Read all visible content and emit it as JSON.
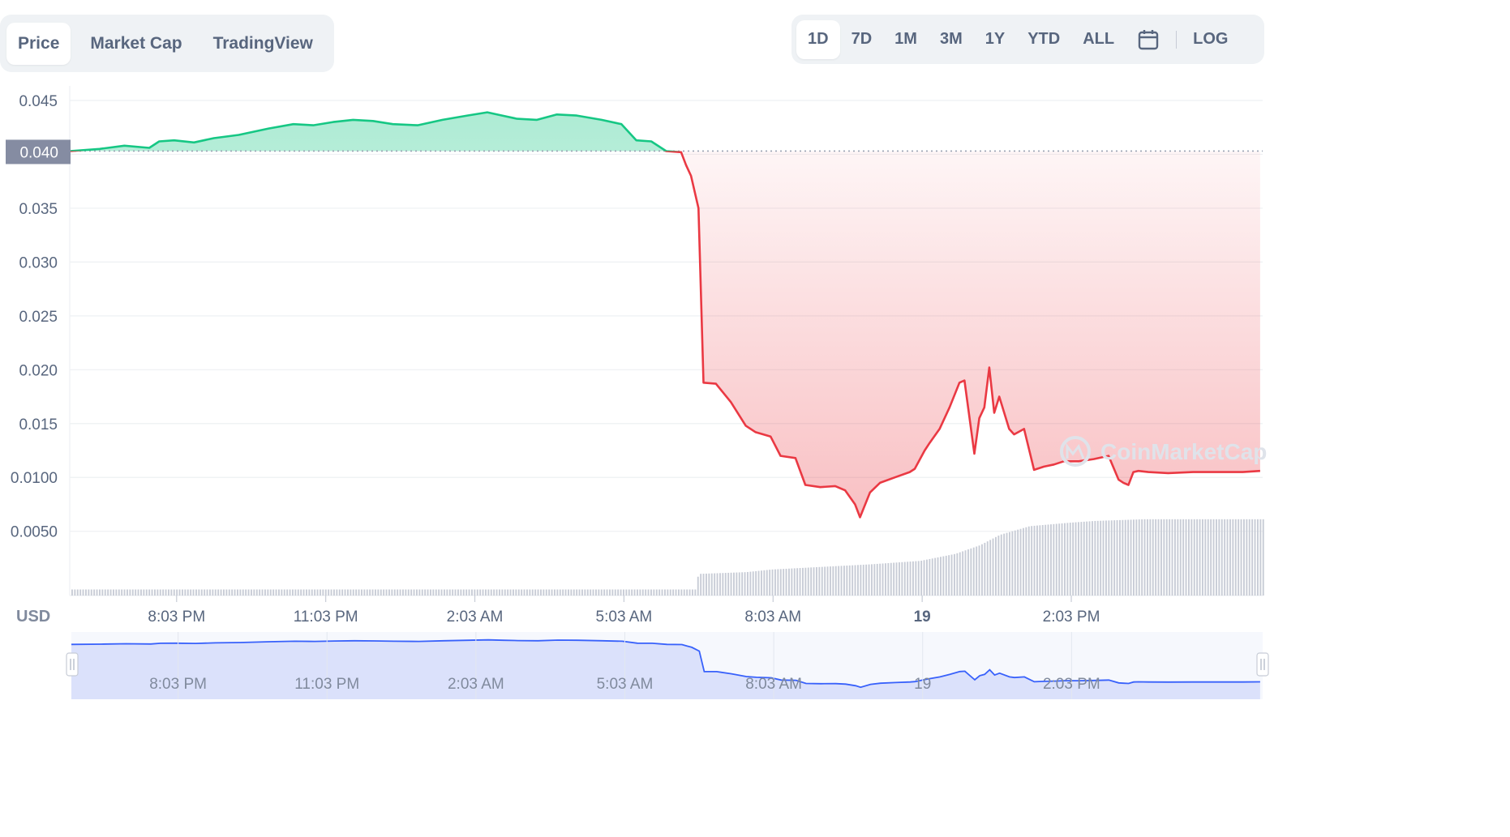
{
  "tabs": {
    "left": [
      {
        "label": "Price",
        "active": true
      },
      {
        "label": "Market Cap",
        "active": false
      },
      {
        "label": "TradingView",
        "active": false
      }
    ],
    "ranges": [
      {
        "label": "1D",
        "active": true
      },
      {
        "label": "7D",
        "active": false
      },
      {
        "label": "1M",
        "active": false
      },
      {
        "label": "3M",
        "active": false
      },
      {
        "label": "1Y",
        "active": false
      },
      {
        "label": "YTD",
        "active": false
      },
      {
        "label": "ALL",
        "active": false
      }
    ],
    "calendar_icon": "calendar-icon",
    "log_label": "LOG"
  },
  "watermark": "CoinMarketCap",
  "colors": {
    "up": "#16c784",
    "down": "#ea3943",
    "nav_line": "#3861fb",
    "nav_fill": "#dbe1fb",
    "volume": "#c8ccd6",
    "current_price_bg": "#858ca2"
  },
  "chart_data": {
    "type": "line",
    "unit_label": "USD",
    "current_price_label": "0.040",
    "reference_price": 0.0403,
    "ylim": [
      0,
      0.046
    ],
    "y_ticks": [
      "0.045",
      "0.040",
      "0.035",
      "0.030",
      "0.025",
      "0.020",
      "0.015",
      "0.0100",
      "0.0050"
    ],
    "y_tick_values": [
      0.045,
      0.04,
      0.035,
      0.03,
      0.025,
      0.02,
      0.015,
      0.01,
      0.005
    ],
    "x_ticks": [
      {
        "label": "8:03 PM",
        "bold": false,
        "h": 20.05
      },
      {
        "label": "11:03 PM",
        "bold": false,
        "h": 23.05
      },
      {
        "label": "2:03 AM",
        "bold": false,
        "h": 26.05
      },
      {
        "label": "5:03 AM",
        "bold": false,
        "h": 29.05
      },
      {
        "label": "8:03 AM",
        "bold": false,
        "h": 32.05
      },
      {
        "label": "19",
        "bold": true,
        "h": 35.05
      },
      {
        "label": "2:03 PM",
        "bold": false,
        "h": 38.05
      }
    ],
    "xlim_hours": [
      17.9,
      41.9
    ],
    "series": [
      {
        "x_hours": [
          17.9,
          18.5,
          19.0,
          19.5,
          19.7,
          20.0,
          20.4,
          20.8,
          21.3,
          21.9,
          22.4,
          22.8,
          23.2,
          23.6,
          24.0,
          24.4,
          24.9,
          25.4,
          25.9,
          26.3,
          26.6,
          26.9,
          27.3,
          27.7,
          28.1,
          28.6,
          29.0,
          29.3,
          29.6,
          29.9,
          30.2,
          30.3,
          30.4,
          30.55,
          30.65,
          30.9,
          31.2,
          31.5,
          31.7,
          32.0,
          32.2,
          32.5,
          32.7,
          33.0,
          33.3,
          33.5,
          33.7,
          33.8,
          34.0,
          34.2,
          34.5,
          34.8,
          34.9,
          35.1,
          35.2,
          35.4,
          35.6,
          35.8,
          35.9,
          36.1,
          36.2,
          36.3,
          36.4,
          36.5,
          36.6,
          36.8,
          36.9,
          37.1,
          37.3,
          37.5,
          37.7,
          37.9,
          38.2,
          38.5,
          38.8,
          39.0,
          39.1,
          39.2,
          39.3,
          39.4,
          39.6,
          40.0,
          40.5,
          41.0,
          41.5,
          41.85
        ],
        "y": [
          0.0403,
          0.0405,
          0.0408,
          0.0406,
          0.0412,
          0.0413,
          0.0411,
          0.0415,
          0.0418,
          0.0424,
          0.0428,
          0.0427,
          0.043,
          0.0432,
          0.0431,
          0.0428,
          0.0427,
          0.0432,
          0.0436,
          0.0439,
          0.0436,
          0.0433,
          0.0432,
          0.0437,
          0.0436,
          0.0432,
          0.0428,
          0.0413,
          0.0412,
          0.0403,
          0.0402,
          0.039,
          0.038,
          0.035,
          0.0188,
          0.0187,
          0.017,
          0.0148,
          0.0142,
          0.0138,
          0.012,
          0.0118,
          0.0093,
          0.0091,
          0.0092,
          0.0088,
          0.0075,
          0.0063,
          0.0086,
          0.0095,
          0.01,
          0.0105,
          0.0108,
          0.0125,
          0.0132,
          0.0145,
          0.0165,
          0.0188,
          0.019,
          0.0122,
          0.0155,
          0.0165,
          0.0202,
          0.016,
          0.0175,
          0.0145,
          0.014,
          0.0145,
          0.0107,
          0.011,
          0.0112,
          0.0115,
          0.0115,
          0.0117,
          0.012,
          0.0098,
          0.0095,
          0.0093,
          0.0105,
          0.0106,
          0.0105,
          0.0104,
          0.0105,
          0.0105,
          0.0105,
          0.0106
        ]
      }
    ],
    "volume": {
      "x_hours": [
        17.9,
        24.0,
        30.45,
        30.55,
        31.5,
        32.0,
        33.0,
        34.0,
        35.0,
        35.7,
        36.2,
        36.6,
        37.2,
        38.0,
        38.5,
        39.5,
        41.85
      ],
      "level": [
        0.1,
        0.1,
        0.12,
        0.25,
        0.27,
        0.3,
        0.33,
        0.36,
        0.4,
        0.48,
        0.58,
        0.7,
        0.8,
        0.84,
        0.86,
        0.88,
        0.88
      ]
    },
    "navigator": {
      "x_ticks": [
        "8:03 PM",
        "11:03 PM",
        "2:03 AM",
        "5:03 AM",
        "8:03 AM",
        "19",
        "2:03 PM"
      ]
    }
  }
}
